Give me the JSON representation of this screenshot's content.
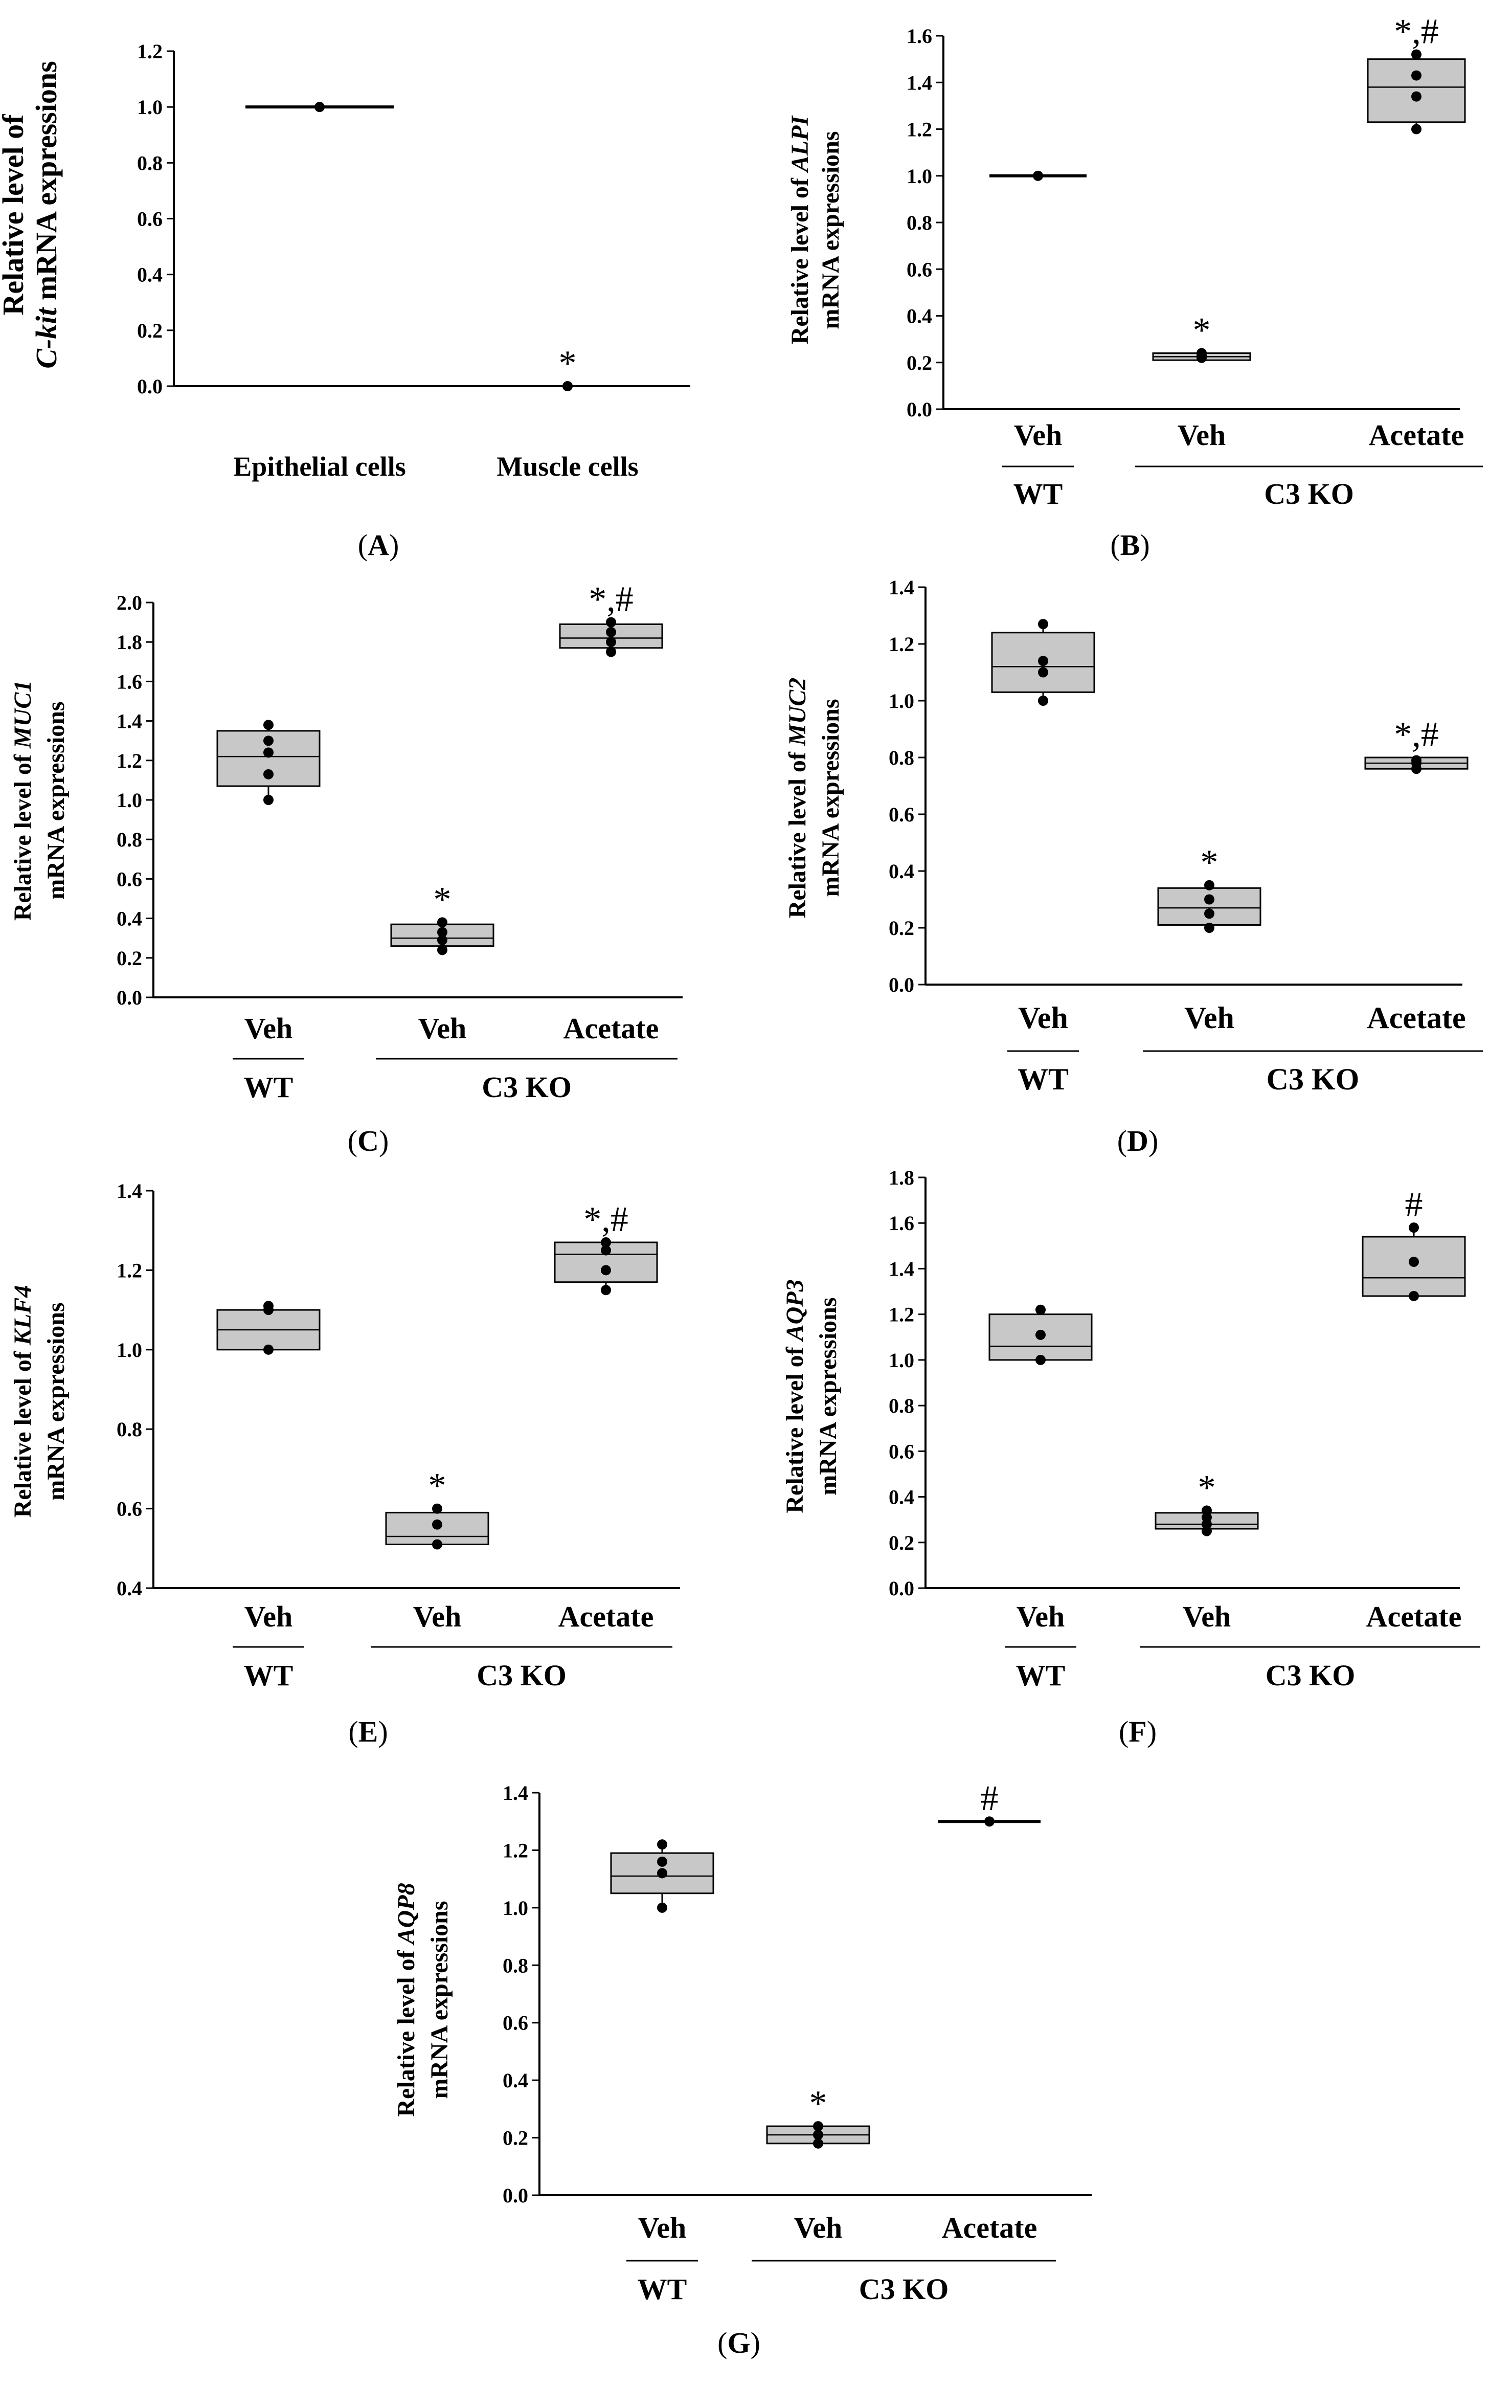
{
  "figure": {
    "fill_color": "#c8c8c8",
    "panels": [
      "A",
      "B",
      "C",
      "D",
      "E",
      "F",
      "G"
    ]
  },
  "chart_data": [
    {
      "id": "A",
      "type": "dot",
      "panel_label": "(A)",
      "panel_letter": "A",
      "ylabel_pre": "Relative level of",
      "ylabel_gene": "C-kit",
      "ylabel_post": "mRNA expressions",
      "ylim": [
        0,
        1.2
      ],
      "yticks": [
        0.0,
        0.2,
        0.4,
        0.6,
        0.8,
        1.0,
        1.2
      ],
      "tick_decimals": 1,
      "groups": [
        {
          "label": "Epithelial cells",
          "points": [
            1.0
          ],
          "box": null,
          "mean": 1.0,
          "annotation": ""
        },
        {
          "label": "Muscle cells",
          "points": [
            0.0
          ],
          "box": null,
          "mean": 0.0,
          "annotation": "*"
        }
      ],
      "group_labels": []
    },
    {
      "id": "B",
      "type": "box",
      "panel_label": "(B)",
      "panel_letter": "B",
      "ylabel_pre": "Relative level of",
      "ylabel_gene": "ALPI",
      "ylabel_post": "mRNA expressions",
      "ylim": [
        0,
        1.6
      ],
      "yticks": [
        0.0,
        0.2,
        0.4,
        0.6,
        0.8,
        1.0,
        1.2,
        1.4,
        1.6
      ],
      "tick_decimals": 1,
      "groups": [
        {
          "label": "Veh",
          "points": [
            1.0
          ],
          "box": null,
          "mean": 1.0,
          "annotation": ""
        },
        {
          "label": "Veh",
          "points": [
            0.22,
            0.23,
            0.24
          ],
          "box": [
            0.21,
            0.225,
            0.24
          ],
          "mean": null,
          "annotation": "*"
        },
        {
          "label": "Acetate",
          "points": [
            1.2,
            1.34,
            1.43,
            1.52
          ],
          "box": [
            1.23,
            1.38,
            1.5
          ],
          "mean": null,
          "annotation": "*,#"
        }
      ],
      "group_labels": [
        {
          "text": "WT",
          "from": 0,
          "to": 0
        },
        {
          "text": "C3 KO",
          "from": 1,
          "to": 2
        }
      ]
    },
    {
      "id": "C",
      "type": "box",
      "panel_label": "(C)",
      "panel_letter": "C",
      "ylabel_pre": "Relative level of",
      "ylabel_gene": "MUC1",
      "ylabel_post": "mRNA expressions",
      "ylim": [
        0,
        2.0
      ],
      "yticks": [
        0.0,
        0.2,
        0.4,
        0.6,
        0.8,
        1.0,
        1.2,
        1.4,
        1.6,
        1.8,
        2.0
      ],
      "tick_decimals": 1,
      "groups": [
        {
          "label": "Veh",
          "points": [
            1.0,
            1.13,
            1.24,
            1.3,
            1.38
          ],
          "box": [
            1.07,
            1.22,
            1.35
          ],
          "mean": null,
          "annotation": ""
        },
        {
          "label": "Veh",
          "points": [
            0.24,
            0.29,
            0.33,
            0.38
          ],
          "box": [
            0.26,
            0.3,
            0.37
          ],
          "mean": null,
          "annotation": "*"
        },
        {
          "label": "Acetate",
          "points": [
            1.75,
            1.8,
            1.85,
            1.9
          ],
          "box": [
            1.77,
            1.82,
            1.89
          ],
          "mean": null,
          "annotation": "*,#"
        }
      ],
      "group_labels": [
        {
          "text": "WT",
          "from": 0,
          "to": 0
        },
        {
          "text": "C3 KO",
          "from": 1,
          "to": 2
        }
      ]
    },
    {
      "id": "D",
      "type": "box",
      "panel_label": "(D)",
      "panel_letter": "D",
      "ylabel_pre": "Relative level of",
      "ylabel_gene": "MUC2",
      "ylabel_post": "mRNA expressions",
      "ylim": [
        0,
        1.4
      ],
      "yticks": [
        0.0,
        0.2,
        0.4,
        0.6,
        0.8,
        1.0,
        1.2,
        1.4
      ],
      "tick_decimals": 1,
      "groups": [
        {
          "label": "Veh",
          "points": [
            1.0,
            1.1,
            1.14,
            1.27
          ],
          "box": [
            1.03,
            1.12,
            1.24
          ],
          "mean": null,
          "annotation": ""
        },
        {
          "label": "Veh",
          "points": [
            0.2,
            0.25,
            0.3,
            0.35
          ],
          "box": [
            0.21,
            0.27,
            0.34
          ],
          "mean": null,
          "annotation": "*"
        },
        {
          "label": "Acetate",
          "points": [
            0.76,
            0.78,
            0.79
          ],
          "box": [
            0.76,
            0.78,
            0.8
          ],
          "mean": null,
          "annotation": "*,#"
        }
      ],
      "group_labels": [
        {
          "text": "WT",
          "from": 0,
          "to": 0
        },
        {
          "text": "C3 KO",
          "from": 1,
          "to": 2
        }
      ]
    },
    {
      "id": "E",
      "type": "box",
      "panel_label": "(E)",
      "panel_letter": "E",
      "ylabel_pre": "Relative level of",
      "ylabel_gene": "KLF4",
      "ylabel_post": "mRNA expressions",
      "ylim": [
        0.4,
        1.4
      ],
      "yticks": [
        0.4,
        0.6,
        0.8,
        1.0,
        1.2,
        1.4
      ],
      "tick_decimals": 1,
      "groups": [
        {
          "label": "Veh",
          "points": [
            1.0,
            1.1,
            1.11
          ],
          "box": [
            1.0,
            1.05,
            1.1
          ],
          "mean": null,
          "annotation": ""
        },
        {
          "label": "Veh",
          "points": [
            0.51,
            0.56,
            0.6
          ],
          "box": [
            0.51,
            0.53,
            0.59
          ],
          "mean": null,
          "annotation": "*"
        },
        {
          "label": "Acetate",
          "points": [
            1.15,
            1.2,
            1.25,
            1.27
          ],
          "box": [
            1.17,
            1.24,
            1.27
          ],
          "mean": null,
          "annotation": "*,#"
        }
      ],
      "group_labels": [
        {
          "text": "WT",
          "from": 0,
          "to": 0
        },
        {
          "text": "C3 KO",
          "from": 1,
          "to": 2
        }
      ]
    },
    {
      "id": "F",
      "type": "box",
      "panel_label": "(F)",
      "panel_letter": "F",
      "ylabel_pre": "Relative level of",
      "ylabel_gene": "AQP3",
      "ylabel_post": "mRNA expressions",
      "ylim": [
        0,
        1.8
      ],
      "yticks": [
        0.0,
        0.2,
        0.4,
        0.6,
        0.8,
        1.0,
        1.2,
        1.4,
        1.6,
        1.8
      ],
      "tick_decimals": 1,
      "groups": [
        {
          "label": "Veh",
          "points": [
            1.0,
            1.11,
            1.22
          ],
          "box": [
            1.0,
            1.06,
            1.2
          ],
          "mean": null,
          "annotation": ""
        },
        {
          "label": "Veh",
          "points": [
            0.25,
            0.28,
            0.31,
            0.34
          ],
          "box": [
            0.26,
            0.28,
            0.33
          ],
          "mean": null,
          "annotation": "*"
        },
        {
          "label": "Acetate",
          "points": [
            1.28,
            1.43,
            1.58
          ],
          "box": [
            1.28,
            1.36,
            1.54
          ],
          "mean": null,
          "annotation": "#"
        }
      ],
      "group_labels": [
        {
          "text": "WT",
          "from": 0,
          "to": 0
        },
        {
          "text": "C3 KO",
          "from": 1,
          "to": 2
        }
      ]
    },
    {
      "id": "G",
      "type": "box",
      "panel_label": "(G)",
      "panel_letter": "G",
      "ylabel_pre": "Relative level of",
      "ylabel_gene": "AQP8",
      "ylabel_post": "mRNA expressions",
      "ylim": [
        0,
        1.4
      ],
      "yticks": [
        0.0,
        0.2,
        0.4,
        0.6,
        0.8,
        1.0,
        1.2,
        1.4
      ],
      "tick_decimals": 1,
      "groups": [
        {
          "label": "Veh",
          "points": [
            1.0,
            1.12,
            1.16,
            1.22
          ],
          "box": [
            1.05,
            1.11,
            1.19
          ],
          "mean": null,
          "annotation": ""
        },
        {
          "label": "Veh",
          "points": [
            0.18,
            0.21,
            0.24
          ],
          "box": [
            0.18,
            0.21,
            0.24
          ],
          "mean": null,
          "annotation": "*"
        },
        {
          "label": "Acetate",
          "points": [
            1.3
          ],
          "box": null,
          "mean": 1.3,
          "annotation": "#"
        }
      ],
      "group_labels": [
        {
          "text": "WT",
          "from": 0,
          "to": 0
        },
        {
          "text": "C3 KO",
          "from": 1,
          "to": 2
        }
      ]
    }
  ]
}
